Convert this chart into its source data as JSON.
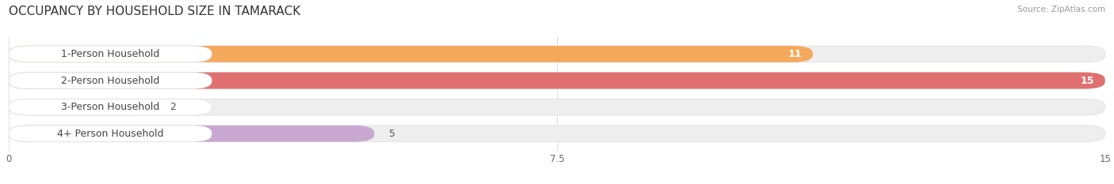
{
  "title": "OCCUPANCY BY HOUSEHOLD SIZE IN TAMARACK",
  "source": "Source: ZipAtlas.com",
  "categories": [
    "1-Person Household",
    "2-Person Household",
    "3-Person Household",
    "4+ Person Household"
  ],
  "values": [
    11,
    15,
    2,
    5
  ],
  "bar_colors": [
    "#F5A95C",
    "#E07070",
    "#A8C4E0",
    "#C8A8D0"
  ],
  "value_inside": [
    true,
    true,
    false,
    false
  ],
  "xlim": [
    0,
    15
  ],
  "xticks": [
    0,
    7.5,
    15
  ],
  "background_color": "#ffffff",
  "bar_bg_color": "#eeeeee",
  "title_fontsize": 11,
  "label_fontsize": 9,
  "value_fontsize": 9,
  "bar_height": 0.62
}
